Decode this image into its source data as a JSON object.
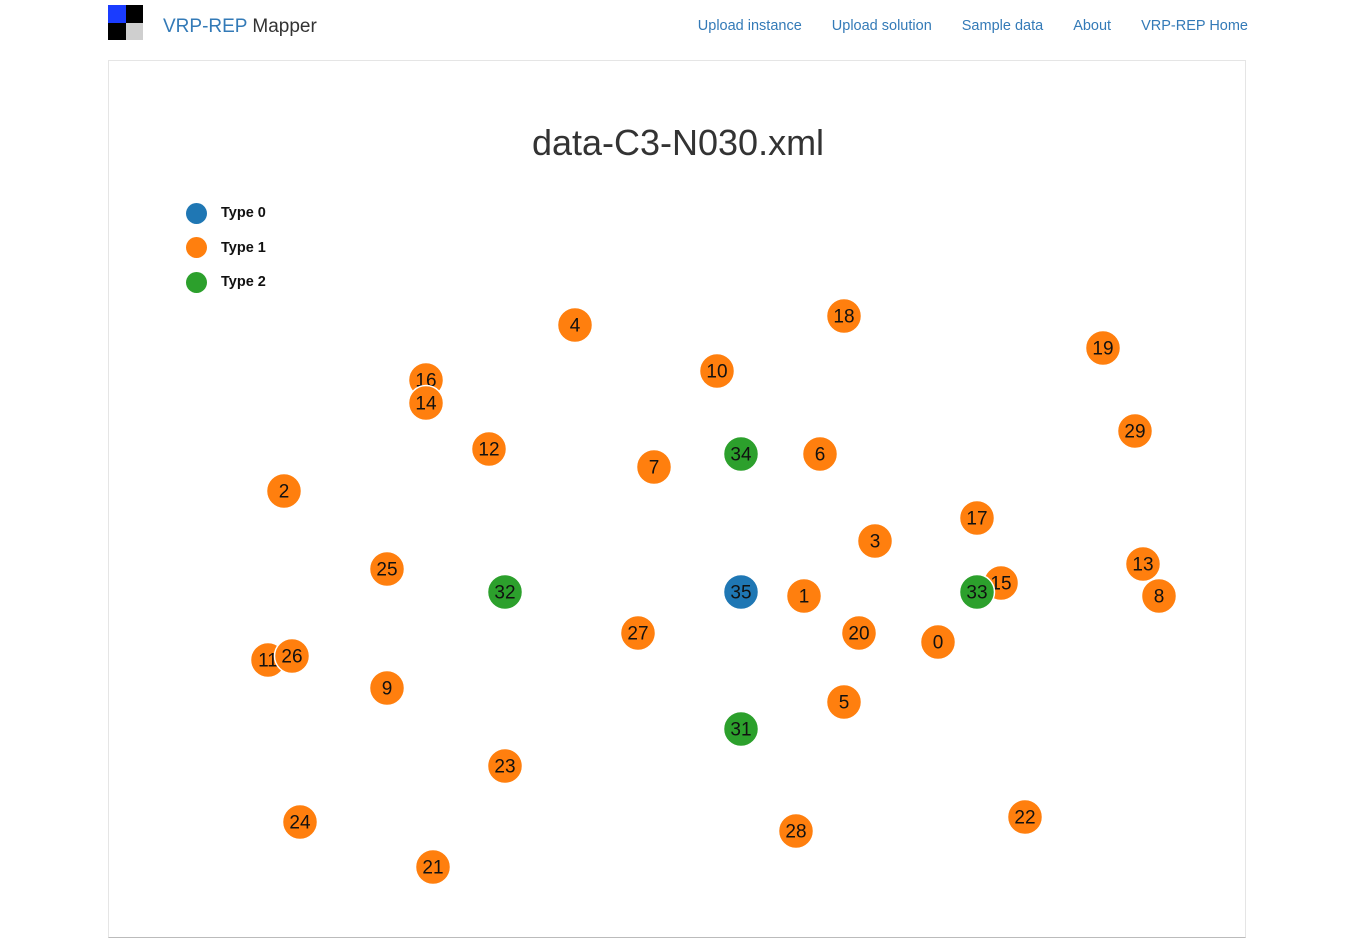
{
  "nav": {
    "brand_part1": "VRP-REP",
    "brand_part2": "Mapper",
    "links": [
      "Upload instance",
      "Upload solution",
      "Sample data",
      "About",
      "VRP-REP Home"
    ]
  },
  "map": {
    "title": "data-C3-N030.xml",
    "legend": [
      {
        "label": "Type 0",
        "color": "#1f77b4"
      },
      {
        "label": "Type 1",
        "color": "#ff7f0e"
      },
      {
        "label": "Type 2",
        "color": "#2ca02c"
      }
    ],
    "nodes": [
      {
        "id": "4",
        "type": 1
      },
      {
        "id": "18",
        "type": 1
      },
      {
        "id": "19",
        "type": 1
      },
      {
        "id": "10",
        "type": 1
      },
      {
        "id": "16",
        "type": 1
      },
      {
        "id": "14",
        "type": 1
      },
      {
        "id": "29",
        "type": 1
      },
      {
        "id": "12",
        "type": 1
      },
      {
        "id": "34",
        "type": 2
      },
      {
        "id": "6",
        "type": 1
      },
      {
        "id": "7",
        "type": 1
      },
      {
        "id": "2",
        "type": 1
      },
      {
        "id": "17",
        "type": 1
      },
      {
        "id": "3",
        "type": 1
      },
      {
        "id": "13",
        "type": 1
      },
      {
        "id": "25",
        "type": 1
      },
      {
        "id": "15",
        "type": 1
      },
      {
        "id": "32",
        "type": 2
      },
      {
        "id": "35",
        "type": 0
      },
      {
        "id": "1",
        "type": 1
      },
      {
        "id": "33",
        "type": 2
      },
      {
        "id": "8",
        "type": 1
      },
      {
        "id": "27",
        "type": 1
      },
      {
        "id": "20",
        "type": 1
      },
      {
        "id": "0",
        "type": 1
      },
      {
        "id": "11",
        "type": 1
      },
      {
        "id": "26",
        "type": 1
      },
      {
        "id": "9",
        "type": 1
      },
      {
        "id": "5",
        "type": 1
      },
      {
        "id": "31",
        "type": 2
      },
      {
        "id": "23",
        "type": 1
      },
      {
        "id": "24",
        "type": 1
      },
      {
        "id": "22",
        "type": 1
      },
      {
        "id": "28",
        "type": 1
      },
      {
        "id": "21",
        "type": 1
      }
    ]
  }
}
